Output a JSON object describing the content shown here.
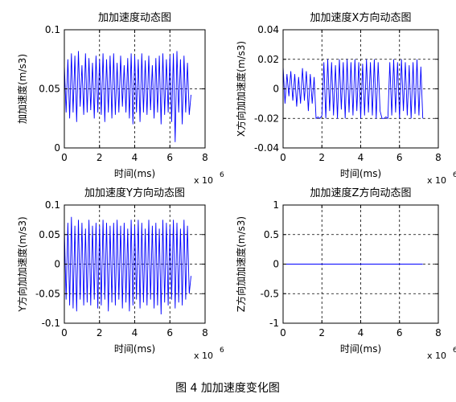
{
  "figure": {
    "caption": "图 4  加加速度变化图"
  },
  "chart_data": [
    {
      "type": "line",
      "title": "加加速度动态图",
      "xlabel": "时间(ms)",
      "ylabel": "加加速度(m/s3)",
      "x_exponent_label": "x 10",
      "x_exponent_power": "6",
      "xlim": [
        0,
        8
      ],
      "ylim": [
        0,
        0.1
      ],
      "xticks": [
        "0",
        "2",
        "4",
        "6",
        "8"
      ],
      "yticks": [
        "0",
        "0.05",
        "0.1"
      ],
      "ytick_values": [
        0,
        0.05,
        0.1
      ],
      "grid": true,
      "line_color": "#0000ff",
      "series": [
        {
          "x": [
            0.0,
            0.1,
            0.2,
            0.3,
            0.4,
            0.5,
            0.6,
            0.7,
            0.8,
            0.9,
            1.0,
            1.1,
            1.2,
            1.3,
            1.4,
            1.5,
            1.6,
            1.7,
            1.8,
            1.9,
            2.0,
            2.1,
            2.2,
            2.3,
            2.4,
            2.5,
            2.6,
            2.7,
            2.8,
            2.9,
            3.0,
            3.1,
            3.2,
            3.3,
            3.4,
            3.5,
            3.6,
            3.7,
            3.8,
            3.9,
            4.0,
            4.1,
            4.2,
            4.3,
            4.4,
            4.5,
            4.6,
            4.7,
            4.8,
            4.9,
            5.0,
            5.1,
            5.2,
            5.3,
            5.4,
            5.5,
            5.6,
            5.7,
            5.8,
            5.9,
            6.0,
            6.1,
            6.2,
            6.3,
            6.4,
            6.5,
            6.6,
            6.7,
            6.8,
            6.9,
            7.0,
            7.1,
            7.2
          ],
          "y": [
            0.07,
            0.03,
            0.075,
            0.025,
            0.08,
            0.03,
            0.078,
            0.022,
            0.082,
            0.035,
            0.07,
            0.028,
            0.08,
            0.03,
            0.076,
            0.032,
            0.072,
            0.025,
            0.078,
            0.03,
            0.075,
            0.028,
            0.08,
            0.022,
            0.075,
            0.03,
            0.078,
            0.025,
            0.08,
            0.028,
            0.072,
            0.03,
            0.078,
            0.035,
            0.07,
            0.03,
            0.076,
            0.025,
            0.08,
            0.02,
            0.078,
            0.03,
            0.075,
            0.022,
            0.08,
            0.03,
            0.074,
            0.028,
            0.078,
            0.032,
            0.07,
            0.025,
            0.076,
            0.03,
            0.078,
            0.02,
            0.08,
            0.028,
            0.075,
            0.03,
            0.078,
            0.022,
            0.08,
            0.005,
            0.082,
            0.03,
            0.075,
            0.02,
            0.078,
            0.03,
            0.072,
            0.028,
            0.045
          ]
        }
      ]
    },
    {
      "type": "line",
      "title": "加加速度X方向动态图",
      "xlabel": "时间(ms)",
      "ylabel": "X方向加加速度(m/s3)",
      "x_exponent_label": "x 10",
      "x_exponent_power": "6",
      "xlim": [
        0,
        8
      ],
      "ylim": [
        -0.04,
        0.04
      ],
      "xticks": [
        "0",
        "2",
        "4",
        "6",
        "8"
      ],
      "yticks": [
        "-0.04",
        "-0.02",
        "0",
        "0.02",
        "0.04"
      ],
      "ytick_values": [
        -0.04,
        -0.02,
        0,
        0.02,
        0.04
      ],
      "grid": true,
      "line_color": "#0000ff",
      "series": [
        {
          "x": [
            0.0,
            0.1,
            0.2,
            0.3,
            0.4,
            0.5,
            0.6,
            0.7,
            0.8,
            0.9,
            1.0,
            1.1,
            1.2,
            1.3,
            1.4,
            1.5,
            1.6,
            1.7,
            1.8,
            1.9,
            2.0,
            2.1,
            2.2,
            2.3,
            2.4,
            2.5,
            2.6,
            2.7,
            2.8,
            2.9,
            3.0,
            3.1,
            3.2,
            3.3,
            3.4,
            3.5,
            3.6,
            3.7,
            3.8,
            3.9,
            4.0,
            4.1,
            4.2,
            4.3,
            4.4,
            4.5,
            4.6,
            4.7,
            4.8,
            4.9,
            5.0,
            5.1,
            5.2,
            5.3,
            5.4,
            5.5,
            5.6,
            5.7,
            5.8,
            5.9,
            6.0,
            6.1,
            6.2,
            6.3,
            6.4,
            6.5,
            6.6,
            6.7,
            6.8,
            6.9,
            7.0,
            7.1,
            7.2
          ],
          "y": [
            0.015,
            -0.01,
            0.01,
            -0.005,
            0.012,
            -0.008,
            0.01,
            -0.012,
            0.008,
            -0.01,
            0.014,
            -0.008,
            0.012,
            -0.015,
            0.01,
            -0.01,
            0.008,
            -0.02,
            -0.019,
            -0.02,
            -0.018,
            0.018,
            -0.02,
            0.02,
            -0.015,
            0.018,
            -0.018,
            0.016,
            -0.02,
            0.02,
            -0.014,
            0.018,
            -0.02,
            0.02,
            -0.016,
            0.018,
            -0.018,
            0.02,
            -0.015,
            0.018,
            -0.02,
            0.017,
            -0.018,
            0.02,
            -0.016,
            0.018,
            -0.018,
            0.02,
            -0.02,
            0.018,
            -0.015,
            -0.02,
            -0.02,
            -0.019,
            -0.02,
            0.018,
            -0.018,
            0.02,
            -0.016,
            0.018,
            -0.02,
            0.02,
            -0.015,
            0.018,
            -0.018,
            0.016,
            -0.02,
            0.018,
            -0.017,
            0.02,
            -0.018,
            0.015,
            -0.02
          ]
        }
      ]
    },
    {
      "type": "line",
      "title": "加加速度Y方向动态图",
      "xlabel": "时间(ms)",
      "ylabel": "Y方向加加速度(m/s3)",
      "x_exponent_label": "x 10",
      "x_exponent_power": "6",
      "xlim": [
        0,
        8
      ],
      "ylim": [
        -0.1,
        0.1
      ],
      "xticks": [
        "0",
        "2",
        "4",
        "6",
        "8"
      ],
      "yticks": [
        "-0.1",
        "-0.05",
        "0",
        "0.05",
        "0.1"
      ],
      "ytick_values": [
        -0.1,
        -0.05,
        0,
        0.05,
        0.1
      ],
      "grid": true,
      "line_color": "#0000ff",
      "series": [
        {
          "x": [
            0.0,
            0.1,
            0.2,
            0.3,
            0.4,
            0.5,
            0.6,
            0.7,
            0.8,
            0.9,
            1.0,
            1.1,
            1.2,
            1.3,
            1.4,
            1.5,
            1.6,
            1.7,
            1.8,
            1.9,
            2.0,
            2.1,
            2.2,
            2.3,
            2.4,
            2.5,
            2.6,
            2.7,
            2.8,
            2.9,
            3.0,
            3.1,
            3.2,
            3.3,
            3.4,
            3.5,
            3.6,
            3.7,
            3.8,
            3.9,
            4.0,
            4.1,
            4.2,
            4.3,
            4.4,
            4.5,
            4.6,
            4.7,
            4.8,
            4.9,
            5.0,
            5.1,
            5.2,
            5.3,
            5.4,
            5.5,
            5.6,
            5.7,
            5.8,
            5.9,
            6.0,
            6.1,
            6.2,
            6.3,
            6.4,
            6.5,
            6.6,
            6.7,
            6.8,
            6.9,
            7.0,
            7.1,
            7.2
          ],
          "y": [
            0.06,
            -0.06,
            0.07,
            -0.07,
            0.08,
            -0.075,
            0.065,
            -0.08,
            0.075,
            -0.06,
            0.07,
            -0.07,
            0.06,
            -0.065,
            0.075,
            -0.07,
            0.065,
            -0.06,
            0.07,
            -0.075,
            0.065,
            -0.07,
            0.075,
            -0.06,
            0.07,
            -0.08,
            0.065,
            -0.065,
            0.07,
            -0.07,
            0.075,
            -0.06,
            0.065,
            -0.075,
            0.07,
            -0.065,
            0.06,
            -0.08,
            0.075,
            -0.07,
            0.065,
            -0.06,
            0.075,
            -0.075,
            0.07,
            -0.065,
            0.06,
            -0.07,
            0.075,
            -0.06,
            0.065,
            -0.075,
            0.07,
            -0.07,
            0.06,
            -0.085,
            0.075,
            -0.065,
            0.07,
            -0.07,
            0.065,
            -0.06,
            0.075,
            -0.075,
            0.07,
            -0.065,
            0.06,
            -0.07,
            0.075,
            -0.06,
            0.065,
            -0.05,
            -0.02
          ]
        }
      ]
    },
    {
      "type": "line",
      "title": "加加速度Z方向动态图",
      "xlabel": "时间(ms)",
      "ylabel": "Z方向加加速度(m/s3)",
      "x_exponent_label": "x 10",
      "x_exponent_power": "6",
      "xlim": [
        0,
        8
      ],
      "ylim": [
        -1,
        1
      ],
      "xticks": [
        "0",
        "2",
        "4",
        "6",
        "8"
      ],
      "yticks": [
        "-1",
        "-0.5",
        "0",
        "0.5",
        "1"
      ],
      "ytick_values": [
        -1,
        -0.5,
        0,
        0.5,
        1
      ],
      "grid": true,
      "line_color": "#0000ff",
      "series": [
        {
          "x": [
            0.0,
            7.2
          ],
          "y": [
            0,
            0
          ]
        }
      ]
    }
  ]
}
